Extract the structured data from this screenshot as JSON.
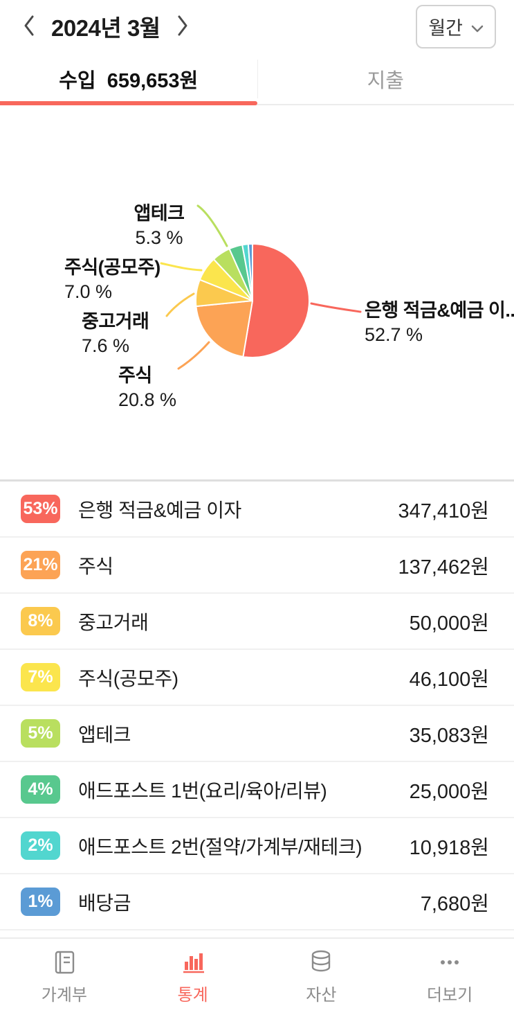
{
  "colors": {
    "accent": "#f8675c",
    "inactive_text": "#9a9a9a"
  },
  "icons": {
    "chevron-left-icon": "‹",
    "chevron-right-icon": "›",
    "chevron-down-icon": "⌄",
    "ledger-book-icon": "notebook",
    "bar-chart-icon": "bars",
    "coins-icon": "coin-stack",
    "more-dots-icon": "•••"
  },
  "header": {
    "title": "2024년 3월",
    "period_label": "월간"
  },
  "tabs": {
    "income": "수입  659,653원",
    "expense": "지출"
  },
  "chart_data": {
    "type": "pie",
    "title": "",
    "legend_position": "callouts",
    "slices": [
      {
        "label": "은행 적금&예금 이자",
        "callout_label": "은행 적금&예금 이...",
        "pct": 52.7,
        "pct_label": "52.7 %",
        "color": "#f8675c"
      },
      {
        "label": "주식",
        "callout_label": "주식",
        "pct": 20.8,
        "pct_label": "20.8 %",
        "color": "#fca355"
      },
      {
        "label": "중고거래",
        "callout_label": "중고거래",
        "pct": 7.6,
        "pct_label": "7.6 %",
        "color": "#fbc94e"
      },
      {
        "label": "주식(공모주)",
        "callout_label": "주식(공모주)",
        "pct": 7.0,
        "pct_label": "7.0 %",
        "color": "#fbe54d"
      },
      {
        "label": "앱테크",
        "callout_label": "앱테크",
        "pct": 5.3,
        "pct_label": "5.3 %",
        "color": "#b9df5f"
      },
      {
        "label": "애드포스트 1번(요리/육아/리뷰)",
        "pct": 3.8,
        "color": "#58c88e"
      },
      {
        "label": "애드포스트 2번(절약/가계부/재테크)",
        "pct": 1.7,
        "color": "#52d6cf"
      },
      {
        "label": "배당금",
        "pct": 1.2,
        "color": "#5b9bd5"
      }
    ]
  },
  "list": {
    "rows": [
      {
        "pct": "53%",
        "label": "은행 적금&예금 이자",
        "amount": "347,410원",
        "color": "#f8675c"
      },
      {
        "pct": "21%",
        "label": "주식",
        "amount": "137,462원",
        "color": "#fca355"
      },
      {
        "pct": "8%",
        "label": "중고거래",
        "amount": "50,000원",
        "color": "#fbc94e"
      },
      {
        "pct": "7%",
        "label": "주식(공모주)",
        "amount": "46,100원",
        "color": "#fbe54d"
      },
      {
        "pct": "5%",
        "label": "앱테크",
        "amount": "35,083원",
        "color": "#b9df5f"
      },
      {
        "pct": "4%",
        "label": "애드포스트 1번(요리/육아/리뷰)",
        "amount": "25,000원",
        "color": "#58c88e"
      },
      {
        "pct": "2%",
        "label": "애드포스트 2번(절약/가계부/재테크)",
        "amount": "10,918원",
        "color": "#52d6cf"
      },
      {
        "pct": "1%",
        "label": "배당금",
        "amount": "7,680원",
        "color": "#5b9bd5"
      }
    ]
  },
  "bottom_nav": {
    "items": [
      {
        "label": "가계부",
        "icon": "ledger-book-icon",
        "active": false
      },
      {
        "label": "통계",
        "icon": "bar-chart-icon",
        "active": true
      },
      {
        "label": "자산",
        "icon": "coins-icon",
        "active": false
      },
      {
        "label": "더보기",
        "icon": "more-dots-icon",
        "active": false
      }
    ]
  }
}
